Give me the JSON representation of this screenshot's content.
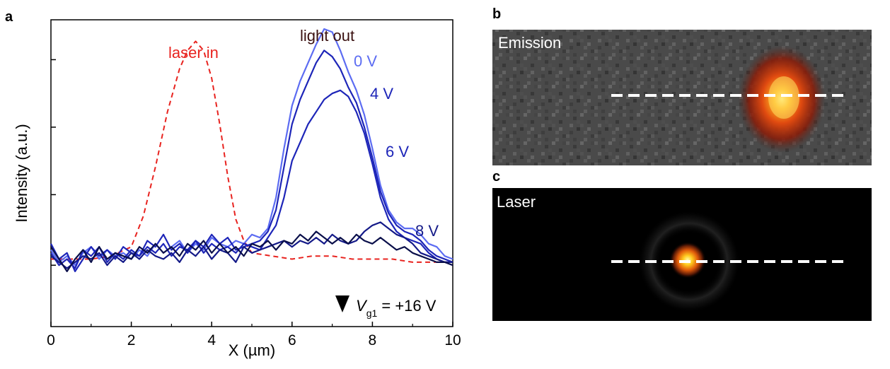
{
  "panels": {
    "a": "a",
    "b": "b",
    "c": "c"
  },
  "colors": {
    "laser": "#e8231f",
    "curve_0V": "#5c6cf2",
    "curve_4V": "#1d25b8",
    "curve_6V": "#1d25b8",
    "curve_8V": "#141a88",
    "curve_16V": "#0a0f4a",
    "text_dark": "#3a1010",
    "arrow_top": "#1e7be0",
    "arrow_bottom": "#000000"
  },
  "chart_data": {
    "type": "line",
    "title": "",
    "xlabel": "X (µm)",
    "ylabel": "Intensity (a.u.)",
    "xlim": [
      0,
      10
    ],
    "ylim": [
      0,
      1
    ],
    "xticks": [
      "0",
      "2",
      "4",
      "6",
      "8",
      "10"
    ],
    "grid": false,
    "annotations": {
      "laser_in": "laser in",
      "light_out": "light out",
      "label_0V": "0 V",
      "label_4V": "4 V",
      "label_6V": "6 V",
      "label_8V": "8 V",
      "vg_var": "V",
      "vg_sub": "g1",
      "vg_value": " = +16 V"
    },
    "series": [
      {
        "name": "laser in",
        "style": "dashed",
        "x": [
          0,
          0.5,
          1,
          1.5,
          2,
          2.3,
          2.6,
          2.9,
          3.2,
          3.4,
          3.6,
          3.8,
          4.0,
          4.2,
          4.4,
          4.6,
          4.8,
          5.0,
          5.5,
          6,
          6.5,
          7,
          7.5,
          8,
          8.5,
          9,
          9.5,
          10
        ],
        "y": [
          0.22,
          0.22,
          0.22,
          0.23,
          0.26,
          0.36,
          0.52,
          0.7,
          0.84,
          0.9,
          0.93,
          0.9,
          0.81,
          0.66,
          0.49,
          0.35,
          0.28,
          0.24,
          0.23,
          0.22,
          0.23,
          0.23,
          0.22,
          0.22,
          0.22,
          0.21,
          0.21,
          0.21
        ]
      },
      {
        "name": "0 V",
        "x": [
          0,
          0.2,
          0.4,
          0.6,
          0.8,
          1.0,
          1.2,
          1.4,
          1.6,
          1.8,
          2.0,
          2.2,
          2.4,
          2.6,
          2.8,
          3.0,
          3.2,
          3.4,
          3.6,
          3.8,
          4.0,
          4.2,
          4.4,
          4.6,
          4.8,
          5.0,
          5.2,
          5.4,
          5.6,
          5.8,
          6.0,
          6.2,
          6.4,
          6.6,
          6.8,
          7.0,
          7.2,
          7.4,
          7.6,
          7.8,
          8.0,
          8.2,
          8.4,
          8.6,
          8.8,
          9.0,
          9.2,
          9.4,
          9.6,
          9.8,
          10
        ],
        "y": [
          0.25,
          0.21,
          0.23,
          0.2,
          0.24,
          0.26,
          0.22,
          0.25,
          0.23,
          0.24,
          0.22,
          0.25,
          0.23,
          0.27,
          0.24,
          0.26,
          0.28,
          0.24,
          0.27,
          0.25,
          0.29,
          0.27,
          0.26,
          0.28,
          0.27,
          0.3,
          0.29,
          0.32,
          0.42,
          0.58,
          0.72,
          0.8,
          0.86,
          0.92,
          0.97,
          0.96,
          0.9,
          0.83,
          0.77,
          0.69,
          0.58,
          0.46,
          0.38,
          0.34,
          0.32,
          0.32,
          0.3,
          0.27,
          0.26,
          0.23,
          0.22
        ]
      },
      {
        "name": "4 V",
        "x": [
          0,
          0.2,
          0.4,
          0.6,
          0.8,
          1.0,
          1.2,
          1.4,
          1.6,
          1.8,
          2.0,
          2.2,
          2.4,
          2.6,
          2.8,
          3.0,
          3.2,
          3.4,
          3.6,
          3.8,
          4.0,
          4.2,
          4.4,
          4.6,
          4.8,
          5.0,
          5.2,
          5.4,
          5.6,
          5.8,
          6.0,
          6.2,
          6.4,
          6.6,
          6.8,
          7.0,
          7.2,
          7.4,
          7.6,
          7.8,
          8.0,
          8.2,
          8.4,
          8.6,
          8.8,
          9.0,
          9.2,
          9.4,
          9.6,
          9.8,
          10
        ],
        "y": [
          0.27,
          0.22,
          0.24,
          0.18,
          0.22,
          0.26,
          0.23,
          0.25,
          0.22,
          0.26,
          0.24,
          0.23,
          0.28,
          0.26,
          0.3,
          0.25,
          0.27,
          0.24,
          0.28,
          0.26,
          0.3,
          0.27,
          0.29,
          0.25,
          0.26,
          0.27,
          0.28,
          0.31,
          0.38,
          0.52,
          0.66,
          0.74,
          0.8,
          0.86,
          0.9,
          0.88,
          0.84,
          0.78,
          0.73,
          0.65,
          0.55,
          0.44,
          0.37,
          0.33,
          0.31,
          0.3,
          0.28,
          0.25,
          0.23,
          0.22,
          0.21
        ]
      },
      {
        "name": "6 V",
        "x": [
          0,
          0.2,
          0.4,
          0.6,
          0.8,
          1.0,
          1.2,
          1.4,
          1.6,
          1.8,
          2.0,
          2.2,
          2.4,
          2.6,
          2.8,
          3.0,
          3.2,
          3.4,
          3.6,
          3.8,
          4.0,
          4.2,
          4.4,
          4.6,
          4.8,
          5.0,
          5.2,
          5.4,
          5.6,
          5.8,
          6.0,
          6.2,
          6.4,
          6.6,
          6.8,
          7.0,
          7.2,
          7.4,
          7.6,
          7.8,
          8.0,
          8.2,
          8.4,
          8.6,
          8.8,
          9.0,
          9.2,
          9.4,
          9.6,
          9.8,
          10
        ],
        "y": [
          0.24,
          0.2,
          0.22,
          0.19,
          0.25,
          0.23,
          0.26,
          0.21,
          0.24,
          0.22,
          0.25,
          0.23,
          0.26,
          0.24,
          0.27,
          0.23,
          0.26,
          0.25,
          0.28,
          0.24,
          0.27,
          0.25,
          0.26,
          0.24,
          0.27,
          0.26,
          0.25,
          0.29,
          0.33,
          0.42,
          0.54,
          0.6,
          0.66,
          0.7,
          0.74,
          0.76,
          0.77,
          0.75,
          0.7,
          0.63,
          0.53,
          0.42,
          0.35,
          0.31,
          0.29,
          0.28,
          0.27,
          0.24,
          0.22,
          0.21,
          0.21
        ]
      },
      {
        "name": "8 V",
        "x": [
          0,
          0.2,
          0.4,
          0.6,
          0.8,
          1.0,
          1.2,
          1.4,
          1.6,
          1.8,
          2.0,
          2.2,
          2.4,
          2.6,
          2.8,
          3.0,
          3.2,
          3.4,
          3.6,
          3.8,
          4.0,
          4.2,
          4.4,
          4.6,
          4.8,
          5.0,
          5.2,
          5.4,
          5.6,
          5.8,
          6.0,
          6.2,
          6.4,
          6.6,
          6.8,
          7.0,
          7.2,
          7.4,
          7.6,
          7.8,
          8.0,
          8.2,
          8.4,
          8.6,
          8.8,
          9.0,
          9.2,
          9.4,
          9.6,
          9.8,
          10
        ],
        "y": [
          0.23,
          0.21,
          0.19,
          0.21,
          0.23,
          0.22,
          0.24,
          0.2,
          0.23,
          0.21,
          0.24,
          0.22,
          0.25,
          0.23,
          0.22,
          0.24,
          0.21,
          0.25,
          0.23,
          0.26,
          0.22,
          0.25,
          0.24,
          0.21,
          0.26,
          0.24,
          0.25,
          0.26,
          0.27,
          0.28,
          0.26,
          0.28,
          0.27,
          0.29,
          0.27,
          0.3,
          0.28,
          0.27,
          0.28,
          0.31,
          0.33,
          0.34,
          0.32,
          0.3,
          0.29,
          0.27,
          0.24,
          0.23,
          0.22,
          0.21,
          0.21
        ]
      },
      {
        "name": "",
        "x": [
          0,
          0.2,
          0.4,
          0.6,
          0.8,
          1.0,
          1.2,
          1.4,
          1.6,
          1.8,
          2.0,
          2.2,
          2.4,
          2.6,
          2.8,
          3.0,
          3.2,
          3.4,
          3.6,
          3.8,
          4.0,
          4.2,
          4.4,
          4.6,
          4.8,
          5.0,
          5.2,
          5.4,
          5.6,
          5.8,
          6.0,
          6.2,
          6.4,
          6.6,
          6.8,
          7.0,
          7.2,
          7.4,
          7.6,
          7.8,
          8.0,
          8.2,
          8.4,
          8.6,
          8.8,
          9.0,
          9.2,
          9.4,
          9.6,
          9.8,
          10
        ],
        "y": [
          0.26,
          0.22,
          0.18,
          0.22,
          0.25,
          0.21,
          0.26,
          0.22,
          0.24,
          0.23,
          0.22,
          0.26,
          0.24,
          0.27,
          0.24,
          0.26,
          0.23,
          0.27,
          0.25,
          0.28,
          0.24,
          0.27,
          0.24,
          0.26,
          0.23,
          0.27,
          0.26,
          0.28,
          0.25,
          0.28,
          0.27,
          0.3,
          0.28,
          0.31,
          0.29,
          0.27,
          0.29,
          0.27,
          0.3,
          0.28,
          0.27,
          0.29,
          0.27,
          0.25,
          0.26,
          0.24,
          0.23,
          0.22,
          0.21,
          0.21,
          0.2
        ]
      }
    ]
  },
  "images": {
    "emission_label": "Emission",
    "laser_label": "Laser"
  }
}
